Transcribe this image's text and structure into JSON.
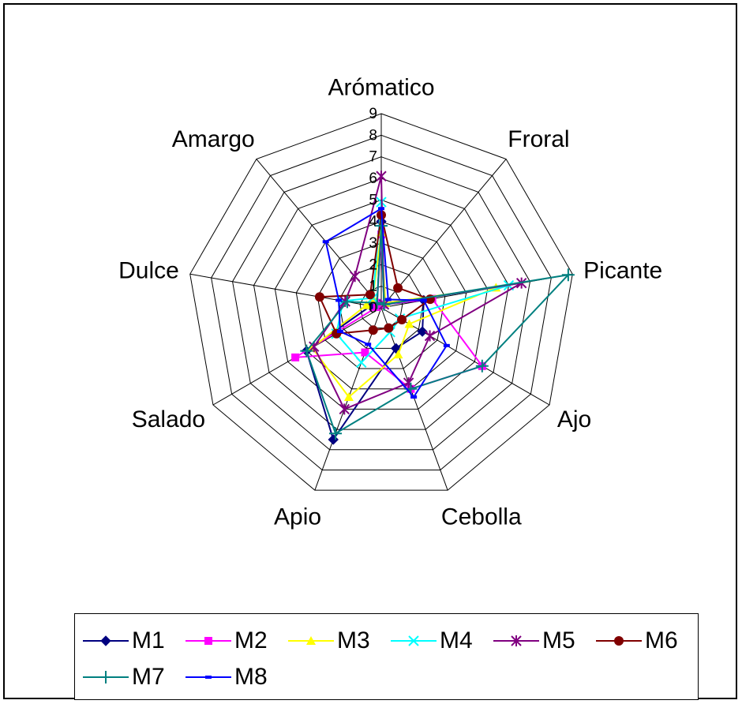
{
  "chart_data": {
    "type": "radar",
    "categories": [
      "Arómatico",
      "Froral",
      "Picante",
      "Ajo",
      "Cebolla",
      "Apio",
      "Salado",
      "Dulce",
      "Amargo"
    ],
    "r_ticks": [
      "0",
      "1",
      "2",
      "3",
      "4",
      "5",
      "6",
      "7",
      "8",
      "9"
    ],
    "r_range": [
      0,
      9
    ],
    "grid": true,
    "legend_position": "bottom",
    "series": [
      {
        "name": "M1",
        "color": "#000080",
        "marker": "diamond",
        "values": [
          4.0,
          0.2,
          2.0,
          2.2,
          2.0,
          6.5,
          4.0,
          0.5,
          0.3
        ]
      },
      {
        "name": "M2",
        "color": "#FF00FF",
        "marker": "square",
        "values": [
          3.4,
          0.2,
          2.4,
          5.4,
          4.0,
          2.2,
          4.6,
          0.2,
          0.3
        ]
      },
      {
        "name": "M3",
        "color": "#FFFF00",
        "marker": "triangle",
        "values": [
          3.5,
          0.3,
          5.4,
          1.5,
          2.3,
          4.4,
          3.7,
          0.7,
          0.6
        ]
      },
      {
        "name": "M4",
        "color": "#00FFFF",
        "marker": "x",
        "values": [
          4.9,
          0.2,
          6.0,
          1.0,
          1.2,
          2.7,
          2.4,
          1.8,
          0.6
        ]
      },
      {
        "name": "M5",
        "color": "#800080",
        "marker": "star",
        "values": [
          6.1,
          0.2,
          6.6,
          2.6,
          3.7,
          5.0,
          3.6,
          1.7,
          1.9
        ]
      },
      {
        "name": "M6",
        "color": "#800000",
        "marker": "circle",
        "values": [
          4.3,
          1.2,
          2.3,
          1.1,
          1.0,
          1.1,
          2.4,
          2.9,
          0.8
        ]
      },
      {
        "name": "M7",
        "color": "#008080",
        "marker": "plus",
        "values": [
          3.8,
          0.2,
          8.8,
          5.4,
          4.0,
          6.2,
          4.0,
          1.6,
          0.3
        ]
      },
      {
        "name": "M8",
        "color": "#0000FF",
        "marker": "dash",
        "values": [
          4.6,
          0.5,
          2.0,
          3.5,
          4.4,
          1.8,
          2.2,
          2.0,
          4.0
        ]
      }
    ]
  }
}
